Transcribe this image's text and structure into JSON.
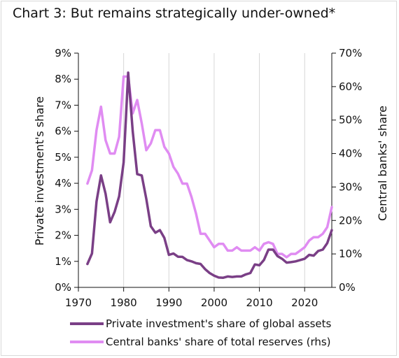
{
  "chart_data": {
    "type": "line",
    "title": "Chart 3: But remains strategically under-owned*",
    "ylabel_left": "Private investment's share",
    "ylabel_right": "Central banks' share",
    "xlim": [
      1970,
      2026
    ],
    "ylim_left": [
      0,
      9
    ],
    "ylim_right": [
      0,
      70
    ],
    "x_ticks": [
      "1970",
      "1980",
      "1990",
      "2000",
      "2010",
      "2020"
    ],
    "x_tick_values": [
      1970,
      1980,
      1990,
      2000,
      2010,
      2020
    ],
    "y_ticks_left": [
      "0%",
      "1%",
      "2%",
      "3%",
      "4%",
      "5%",
      "6%",
      "7%",
      "8%",
      "9%"
    ],
    "y_ticks_right": [
      "0%",
      "10%",
      "20%",
      "30%",
      "40%",
      "50%",
      "60%",
      "70%"
    ],
    "grid": "vertical",
    "legend_position": "bottom",
    "colors": {
      "private": "#7a3f86",
      "central": "#e08cf2",
      "grid": "#d6d6d6"
    },
    "series": [
      {
        "name": "Private investment's share of global assets",
        "axis": "left",
        "x": [
          1972,
          1973,
          1974,
          1975,
          1976,
          1977,
          1978,
          1979,
          1980,
          1980.5,
          1981,
          1982,
          1983,
          1984,
          1985,
          1986,
          1987,
          1988,
          1989,
          1990,
          1991,
          1992,
          1993,
          1994,
          1995,
          1996,
          1997,
          1998,
          1999,
          2000,
          2001,
          2002,
          2003,
          2004,
          2005,
          2006,
          2007,
          2008,
          2009,
          2010,
          2011,
          2012,
          2013,
          2014,
          2015,
          2016,
          2017,
          2018,
          2019,
          2020,
          2021,
          2022,
          2023,
          2024,
          2025,
          2026
        ],
        "y": [
          0.9,
          1.3,
          3.3,
          4.3,
          3.6,
          2.5,
          2.9,
          3.5,
          4.8,
          6.5,
          8.25,
          6.0,
          4.35,
          4.3,
          3.4,
          2.35,
          2.1,
          2.2,
          1.9,
          1.25,
          1.3,
          1.18,
          1.17,
          1.05,
          1.0,
          0.93,
          0.9,
          0.7,
          0.55,
          0.45,
          0.38,
          0.37,
          0.42,
          0.4,
          0.42,
          0.42,
          0.5,
          0.55,
          0.88,
          0.85,
          1.05,
          1.45,
          1.45,
          1.2,
          1.1,
          0.95,
          0.97,
          1.0,
          1.05,
          1.1,
          1.25,
          1.22,
          1.4,
          1.45,
          1.7,
          2.2
        ]
      },
      {
        "name": "Central banks' share of total reserves (rhs)",
        "axis": "right",
        "x": [
          1972,
          1973,
          1974,
          1975,
          1976,
          1977,
          1978,
          1979,
          1980,
          1981,
          1982,
          1983,
          1984,
          1985,
          1986,
          1987,
          1988,
          1989,
          1990,
          1991,
          1992,
          1993,
          1994,
          1995,
          1996,
          1997,
          1998,
          1999,
          2000,
          2001,
          2002,
          2003,
          2004,
          2005,
          2006,
          2007,
          2008,
          2009,
          2010,
          2011,
          2012,
          2013,
          2014,
          2015,
          2016,
          2017,
          2018,
          2019,
          2020,
          2021,
          2022,
          2023,
          2024,
          2025,
          2026
        ],
        "y": [
          31,
          35,
          47,
          54,
          44,
          40,
          40,
          45,
          63,
          63,
          52,
          56,
          49,
          41,
          43,
          47,
          47,
          42,
          40,
          36,
          34,
          31,
          31,
          27,
          22,
          16,
          16,
          14,
          12,
          13,
          13,
          11,
          11,
          12,
          11,
          11,
          11,
          12,
          11,
          13,
          13.5,
          13,
          10,
          10,
          9,
          10,
          10,
          11,
          12,
          14,
          15,
          15,
          16,
          18,
          24
        ]
      }
    ]
  }
}
